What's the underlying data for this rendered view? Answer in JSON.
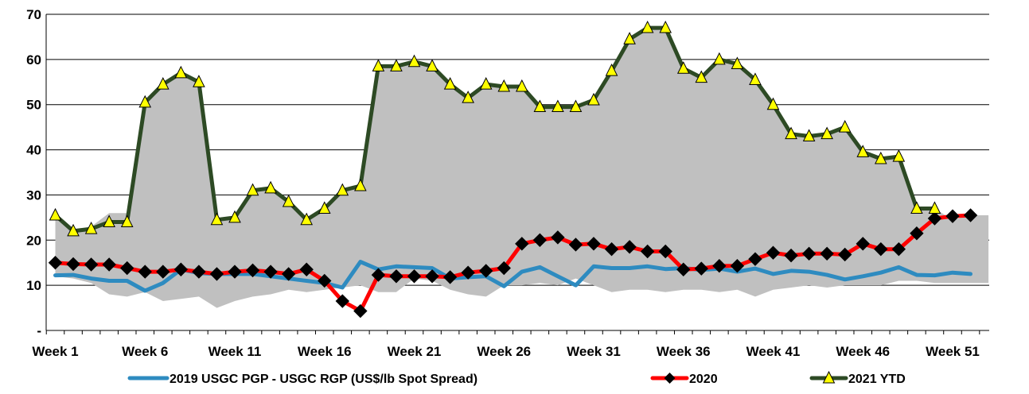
{
  "chart_data": {
    "type": "line",
    "title": "",
    "xlabel": "",
    "ylabel": "",
    "ylim": [
      0,
      70
    ],
    "y_ticks": [
      {
        "value": 0,
        "label": "-"
      },
      {
        "value": 10,
        "label": "10"
      },
      {
        "value": 20,
        "label": "20"
      },
      {
        "value": 30,
        "label": "30"
      },
      {
        "value": 40,
        "label": "40"
      },
      {
        "value": 50,
        "label": "50"
      },
      {
        "value": 60,
        "label": "60"
      },
      {
        "value": 70,
        "label": "70"
      }
    ],
    "x_tick_labels": [
      {
        "week": 1,
        "label": "Week 1"
      },
      {
        "week": 6,
        "label": "Week 6"
      },
      {
        "week": 11,
        "label": "Week 11"
      },
      {
        "week": 16,
        "label": "Week 16"
      },
      {
        "week": 21,
        "label": "Week 21"
      },
      {
        "week": 26,
        "label": "Week 26"
      },
      {
        "week": 31,
        "label": "Week 31"
      },
      {
        "week": 36,
        "label": "Week 36"
      },
      {
        "week": 41,
        "label": "Week 41"
      },
      {
        "week": 46,
        "label": "Week 46"
      },
      {
        "week": 51,
        "label": "Week 51"
      }
    ],
    "weeks": 53,
    "grid": "horizontal",
    "legend_position": "bottom",
    "range_band": {
      "color": "#c0c0c0",
      "upper": [
        25.5,
        22,
        23,
        26,
        26,
        50.5,
        54.5,
        57,
        55,
        24.5,
        25,
        31,
        31.5,
        28.5,
        24.5,
        27,
        31,
        32.5,
        58.5,
        58.5,
        59.5,
        58.5,
        54.5,
        51.5,
        54.5,
        54,
        54,
        49.5,
        49.5,
        49.5,
        51,
        57.5,
        64.5,
        67,
        67,
        58,
        56,
        60,
        59,
        55.5,
        50,
        43.5,
        43,
        43.5,
        45,
        39.5,
        38,
        38.5,
        27,
        27,
        24.5,
        25.5,
        25.5
      ],
      "lower": [
        12,
        11.5,
        10.5,
        8,
        7.5,
        8.5,
        6.5,
        7,
        7.5,
        5,
        6.5,
        7.5,
        8,
        9,
        8.5,
        9,
        9.5,
        10,
        8.5,
        8.5,
        11.5,
        11,
        9,
        8,
        7.5,
        10,
        10,
        10.5,
        10,
        11.5,
        10,
        8.5,
        9,
        9,
        8.5,
        9,
        9,
        8.5,
        9,
        7.5,
        9,
        9.5,
        10,
        9.5,
        10,
        10,
        10,
        11,
        11,
        10.5,
        10.5,
        10.5,
        10.5
      ]
    },
    "series": [
      {
        "name": "2019 USGC PGP - USGC RGP (US$/lb Spot Spread)",
        "color": "#2e8bc0",
        "marker": "none",
        "values": [
          12.2,
          12.3,
          11.5,
          11,
          11,
          8.8,
          10.5,
          13.5,
          12.7,
          12.5,
          12.5,
          12.5,
          12,
          11.5,
          11,
          10.5,
          9.5,
          15.2,
          13.5,
          14.2,
          14,
          13.8,
          11.5,
          11.8,
          12,
          9.8,
          13,
          14,
          12,
          10,
          14.2,
          13.8,
          13.8,
          14.2,
          13.6,
          13.8,
          13.4,
          13.7,
          13,
          13.7,
          12.5,
          13.2,
          13,
          12.3,
          11.3,
          12,
          12.8,
          14,
          12.3,
          12.2,
          12.8,
          12.5,
          null
        ]
      },
      {
        "name": "2020",
        "color": "#ff0000",
        "marker": "diamond",
        "values": [
          15,
          14.7,
          14.6,
          14.6,
          13.8,
          13,
          13,
          13.5,
          13,
          12.5,
          13,
          13.3,
          13,
          12.5,
          13.5,
          11,
          6.5,
          4.3,
          12.3,
          12,
          12,
          12,
          11.8,
          12.8,
          13.2,
          13.8,
          19.2,
          20,
          20.6,
          19,
          19.2,
          18,
          18.5,
          17.5,
          17.5,
          13.5,
          13.7,
          14.3,
          14.3,
          15.8,
          17.2,
          16.6,
          17,
          17,
          16.8,
          19.2,
          18,
          18,
          21.5,
          24.8,
          25.3,
          25.5,
          null
        ]
      },
      {
        "name": "2021 YTD",
        "color": "#2d4a24",
        "marker": "triangle",
        "values": [
          25.5,
          22,
          22.5,
          24,
          24,
          50.5,
          54.5,
          57,
          55,
          24.5,
          25,
          31,
          31.5,
          28.5,
          24.5,
          27,
          31,
          32,
          58.5,
          58.5,
          59.5,
          58.5,
          54.5,
          51.5,
          54.5,
          54,
          54,
          49.5,
          49.5,
          49.5,
          51,
          57.5,
          64.5,
          67,
          67,
          58,
          56,
          60,
          59,
          55.5,
          50,
          43.5,
          43,
          43.5,
          45,
          39.5,
          38,
          38.5,
          27,
          27,
          null,
          null,
          null
        ]
      }
    ]
  }
}
